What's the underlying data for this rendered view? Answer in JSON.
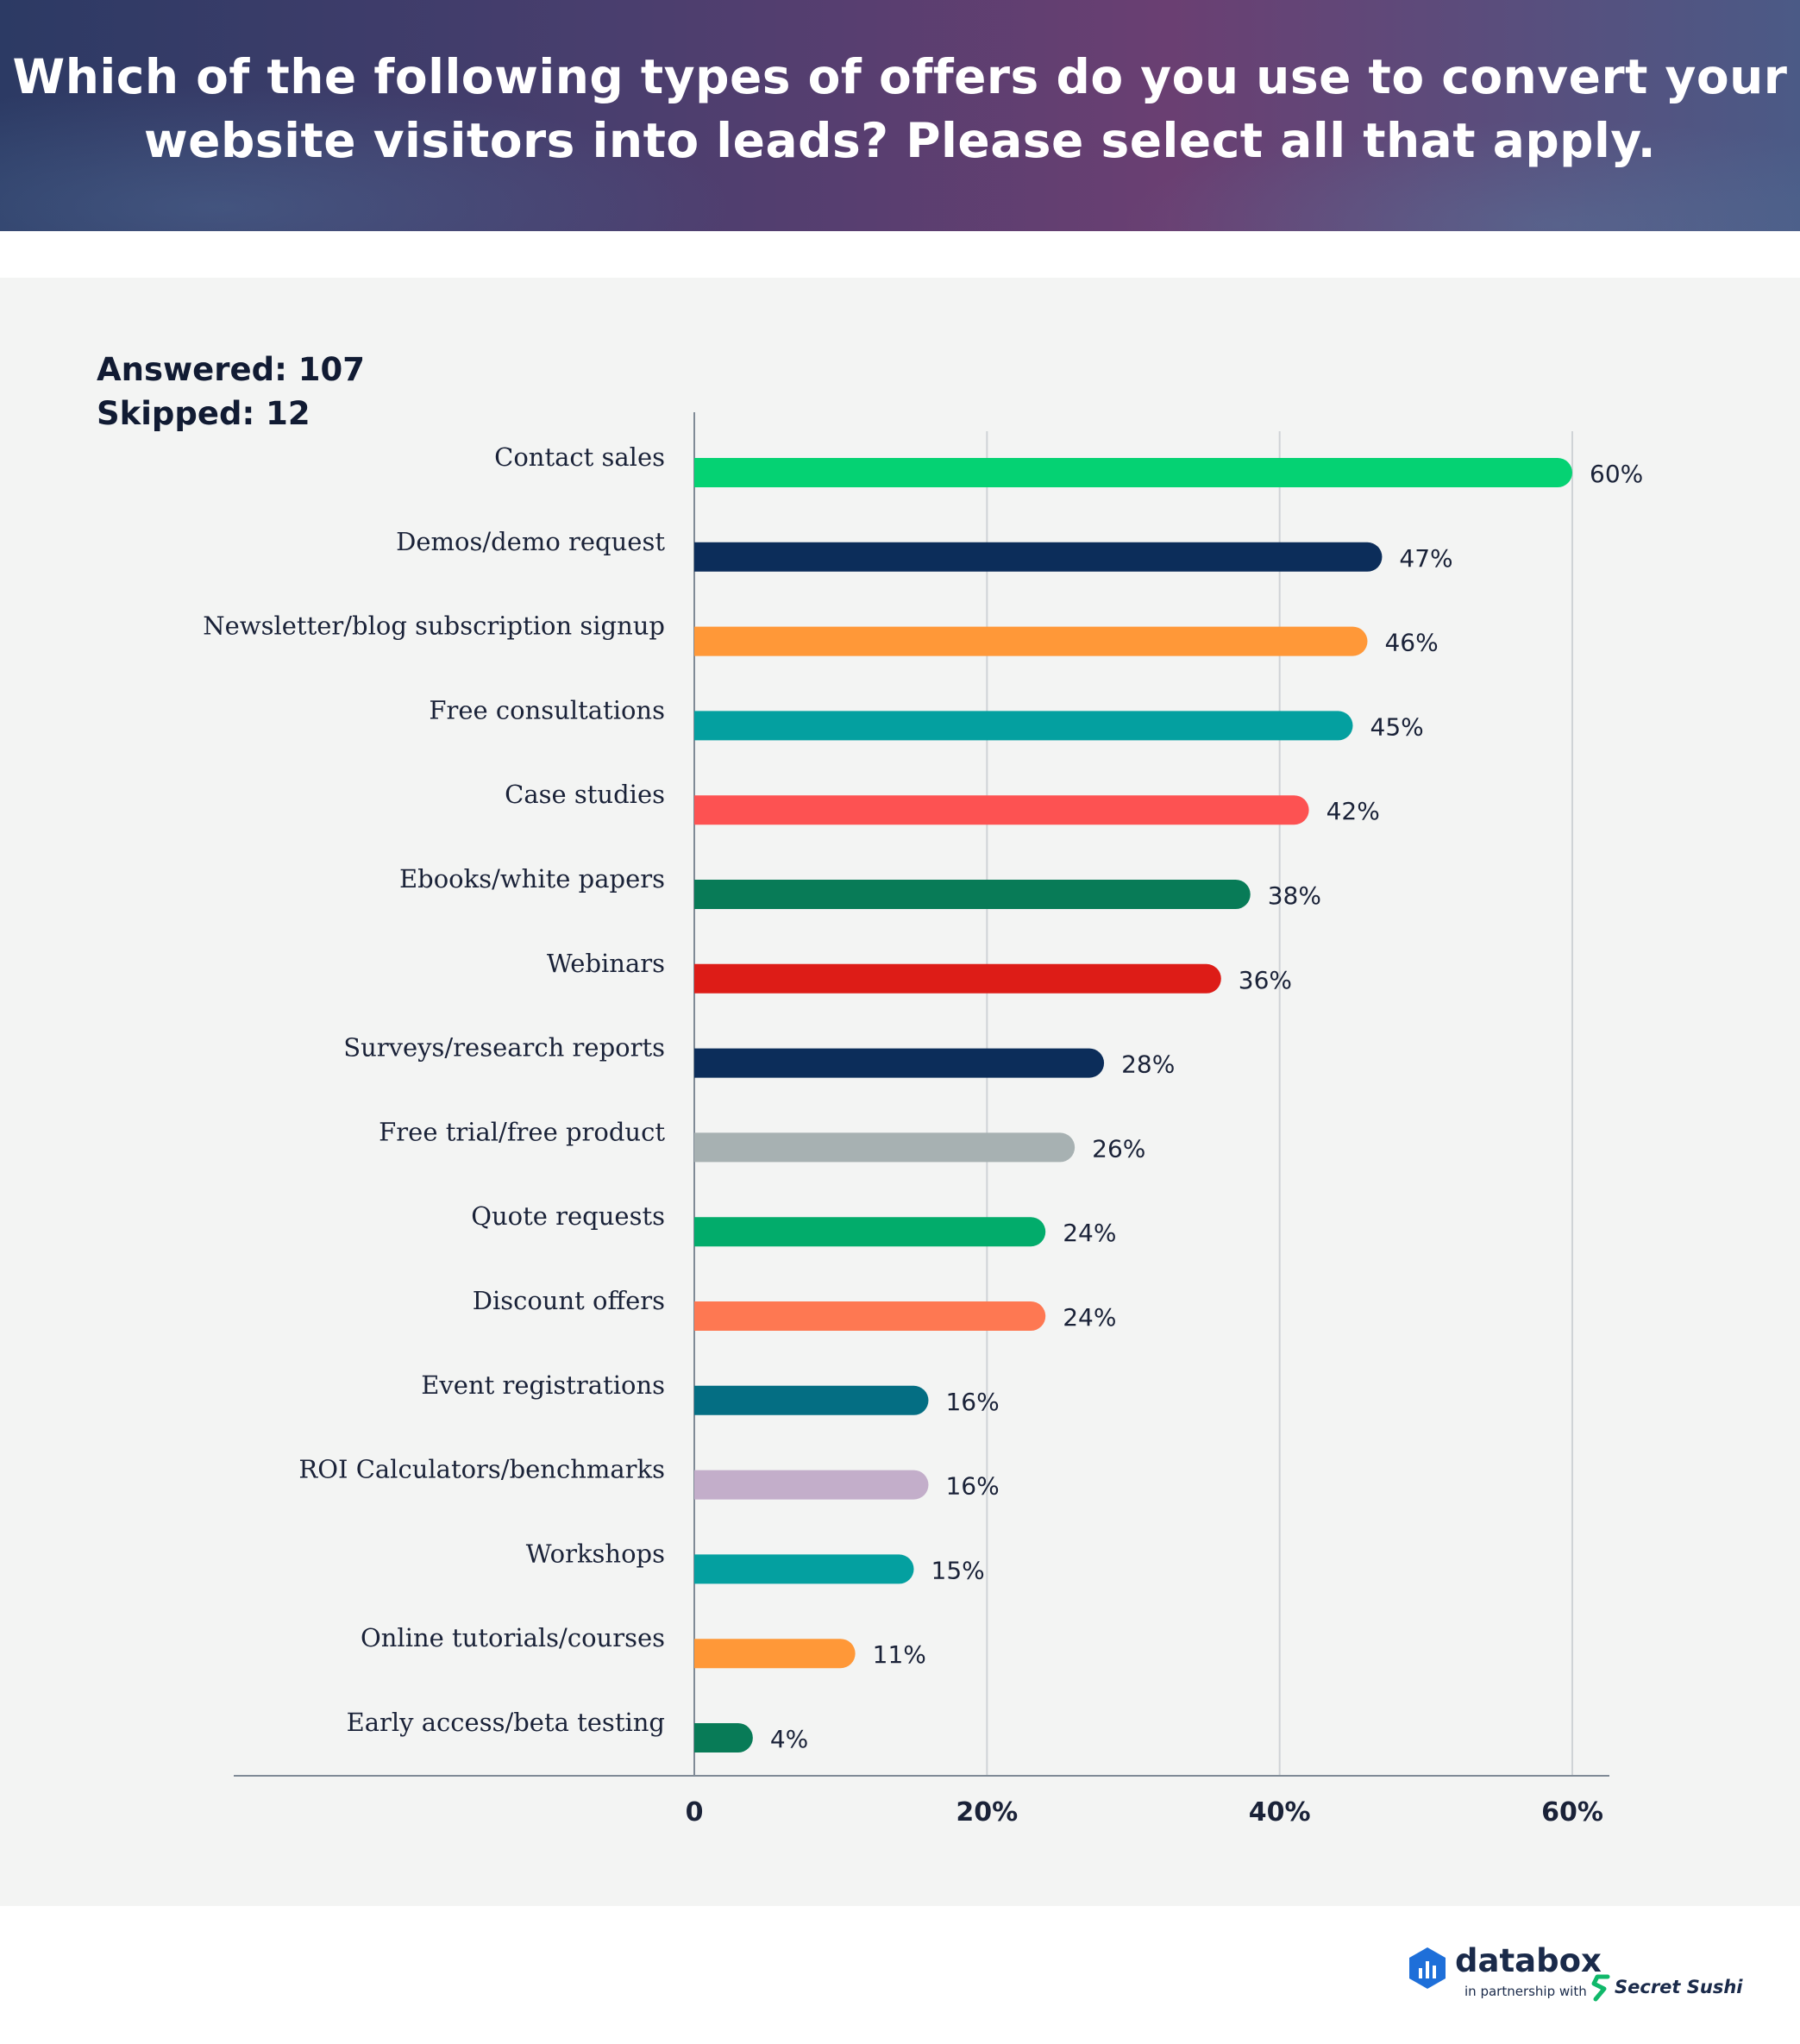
{
  "header": {
    "title": "Which of the following types of offers do you use to convert your\nwebsite visitors into leads? Please select all that apply."
  },
  "stats": {
    "answered": "Answered: 107",
    "skipped": "Skipped: 12"
  },
  "chart_data": {
    "type": "bar",
    "orientation": "horizontal",
    "title": "Which of the following types of offers do you use to convert your website visitors into leads? Please select all that apply.",
    "xlabel": "",
    "ylabel": "",
    "xlim": [
      0,
      60
    ],
    "xticks": [
      "0",
      "20%",
      "40%",
      "60%"
    ],
    "grid": true,
    "categories": [
      "Contact sales",
      "Demos/demo request",
      "Newsletter/blog subscription signup",
      "Free consultations",
      "Case studies",
      "Ebooks/white papers",
      "Webinars",
      "Surveys/research reports",
      "Free trial/free product",
      "Quote requests",
      "Discount offers",
      "Event registrations",
      "ROI Calculators/benchmarks",
      "Workshops",
      "Online tutorials/courses",
      "Early access/beta testing"
    ],
    "values": [
      60,
      47,
      46,
      45,
      42,
      38,
      36,
      28,
      26,
      24,
      24,
      16,
      16,
      15,
      11,
      4
    ],
    "labels": [
      "60%",
      "47%",
      "46%",
      "45%",
      "42%",
      "38%",
      "36%",
      "28%",
      "26%",
      "24%",
      "24%",
      "16%",
      "16%",
      "15%",
      "11%",
      "4%"
    ],
    "colors": [
      "#05d273",
      "#0c2d5a",
      "#ff9838",
      "#04a0a0",
      "#fd5252",
      "#087b57",
      "#dd1c17",
      "#0c2d5a",
      "#a7b1b2",
      "#02ac6b",
      "#fe7852",
      "#046e83",
      "#c3aeca",
      "#04a0a0",
      "#ff9838",
      "#087b57"
    ]
  },
  "footer": {
    "brand": "databox",
    "partnership": "in partnership with",
    "partner": "Secret Sushi",
    "brand_color": "#1e6fd9",
    "partner_color": "#10b86a"
  }
}
